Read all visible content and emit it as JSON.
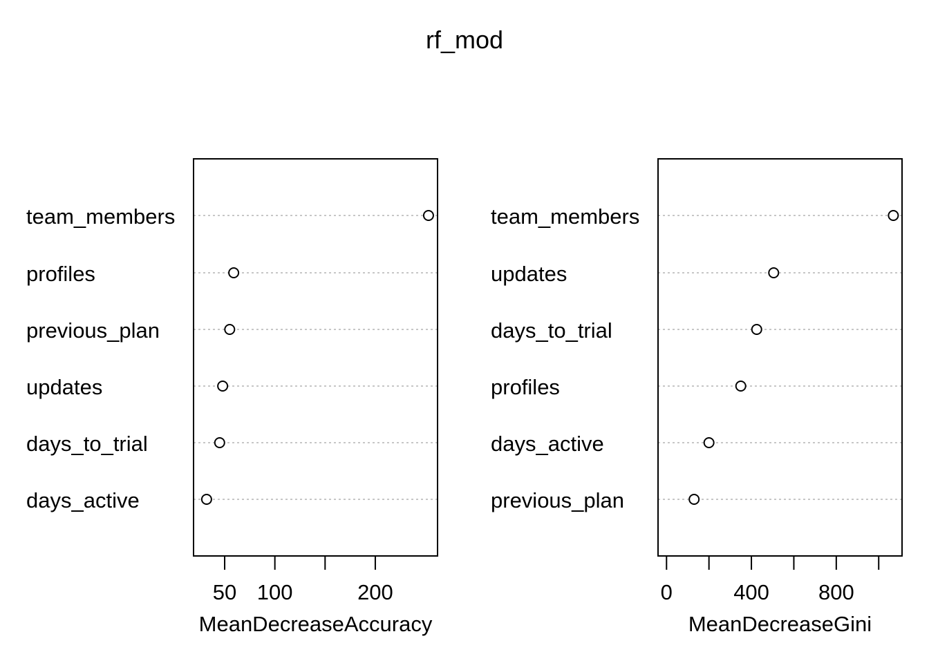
{
  "title": "rf_mod",
  "chart_data": [
    {
      "type": "scatter",
      "xlabel": "MeanDecreaseAccuracy",
      "xlim": [
        19,
        262
      ],
      "xticks": [
        50,
        100,
        150,
        200
      ],
      "xtick_labels": [
        "50",
        "100",
        "",
        "200"
      ],
      "categories": [
        "team_members",
        "profiles",
        "previous_plan",
        "updates",
        "days_to_trial",
        "days_active"
      ],
      "values": [
        253,
        59,
        55,
        48,
        45,
        32
      ],
      "grid": "horizontal dotted lines"
    },
    {
      "type": "scatter",
      "xlabel": "MeanDecreaseGini",
      "xlim": [
        -40,
        1110
      ],
      "xticks": [
        0,
        200,
        400,
        600,
        800,
        1000
      ],
      "xtick_labels": [
        "0",
        "",
        "400",
        "",
        "800",
        ""
      ],
      "categories": [
        "team_members",
        "updates",
        "days_to_trial",
        "profiles",
        "days_active",
        "previous_plan"
      ],
      "values": [
        1069,
        505,
        425,
        350,
        200,
        130
      ],
      "grid": "horizontal dotted lines"
    }
  ]
}
